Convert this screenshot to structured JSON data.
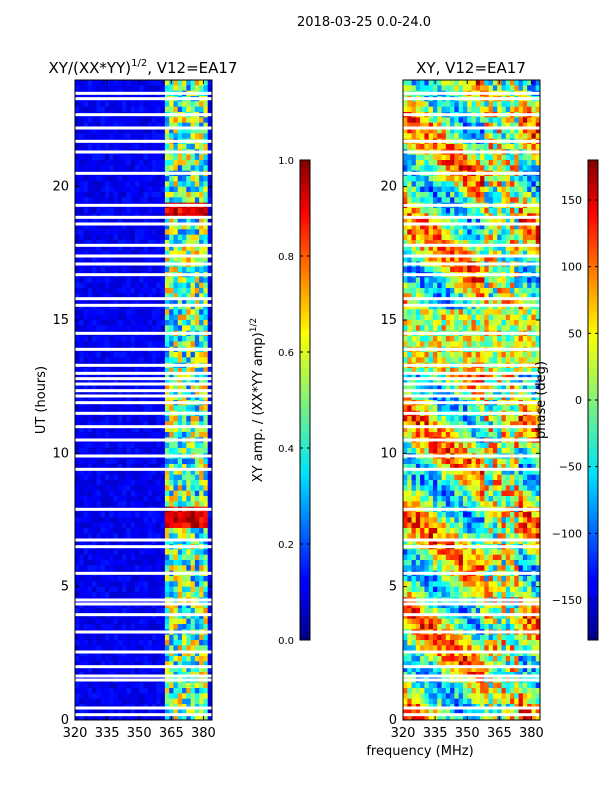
{
  "suptitle": "2018-03-25 0.0-24.0",
  "shared_xlabel": "frequency (MHz)",
  "chart_data": [
    {
      "type": "heatmap",
      "title_main": "XY/(XX*YY)",
      "title_exp": "1/2",
      "title_suffix": ", V12=EA17",
      "ylabel": "UT (hours)",
      "xlim": [
        320,
        384
      ],
      "ylim": [
        0,
        24
      ],
      "x_ticks": [
        320,
        335,
        350,
        365,
        380
      ],
      "y_ticks": [
        0,
        5,
        10,
        15,
        20
      ],
      "colormap": "jet",
      "colorbar": {
        "label_main": "XY amp. / (XX*YY amp)",
        "label_exp": "1/2",
        "range": [
          0.0,
          1.0
        ],
        "ticks": [
          "0.0",
          "0.2",
          "0.4",
          "0.6",
          "0.8",
          "1.0"
        ],
        "tick_values": [
          0.0,
          0.2,
          0.4,
          0.6,
          0.8,
          1.0
        ]
      },
      "flagged_times_ut": [
        0.2,
        0.45,
        1.5,
        1.65,
        2.0,
        2.55,
        3.3,
        3.95,
        4.35,
        4.5,
        5.5,
        6.5,
        6.75,
        7.9,
        9.4,
        9.9,
        10.5,
        11.0,
        11.5,
        11.9,
        12.15,
        12.35,
        12.6,
        12.8,
        13.0,
        13.3,
        13.9,
        14.5,
        15.55,
        15.8,
        16.7,
        17.1,
        17.4,
        17.8,
        18.6,
        18.85,
        19.3,
        20.5,
        21.3,
        21.7,
        22.2,
        22.7,
        23.3,
        23.5
      ]
    },
    {
      "type": "heatmap",
      "title_main": "XY, V12=EA17",
      "xlim": [
        320,
        384
      ],
      "ylim": [
        0,
        24
      ],
      "x_ticks": [
        320,
        335,
        350,
        365,
        380
      ],
      "y_ticks": [
        0,
        5,
        10,
        15,
        20
      ],
      "colormap": "jet",
      "colorbar": {
        "label_main": "phase (deg)",
        "range": [
          -180,
          180
        ],
        "ticks": [
          "−150",
          "−100",
          "−50",
          "0",
          "50",
          "100",
          "150"
        ],
        "tick_values": [
          -150,
          -100,
          -50,
          0,
          50,
          100,
          150
        ]
      },
      "flagged_times_ut": [
        0.2,
        0.45,
        1.5,
        1.65,
        2.0,
        2.55,
        3.3,
        3.95,
        4.35,
        4.5,
        5.5,
        6.5,
        6.75,
        7.9,
        9.4,
        9.9,
        10.5,
        11.0,
        11.5,
        11.9,
        12.15,
        12.35,
        12.6,
        12.8,
        13.0,
        13.3,
        13.9,
        14.5,
        15.55,
        15.8,
        16.7,
        17.1,
        17.4,
        17.8,
        18.6,
        18.85,
        19.3,
        20.5,
        21.3,
        21.7,
        22.2,
        22.7,
        23.3,
        23.5
      ]
    }
  ]
}
